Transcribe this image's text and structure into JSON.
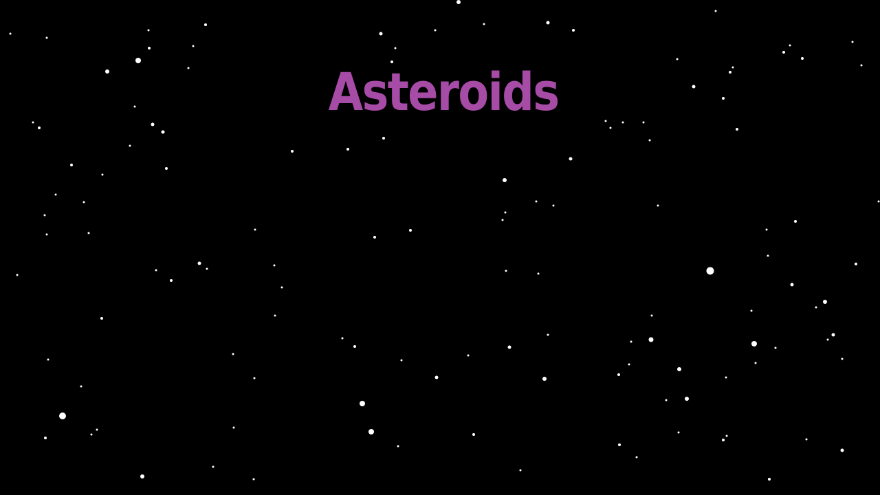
{
  "game": {
    "title": "Asteroids"
  },
  "colors": {
    "background": "#000000",
    "title": "#a64ca6",
    "star": "#ffffff"
  }
}
